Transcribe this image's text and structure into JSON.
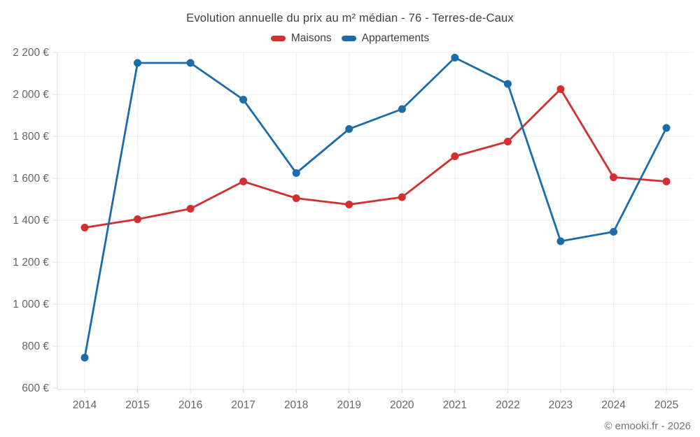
{
  "chart_data": {
    "type": "line",
    "title": "Evolution annuelle du prix au m² médian - 76 - Terres-de-Caux",
    "categories": [
      "2014",
      "2015",
      "2016",
      "2017",
      "2018",
      "2019",
      "2020",
      "2021",
      "2022",
      "2023",
      "2024",
      "2025"
    ],
    "series": [
      {
        "name": "Maisons",
        "color": "#d32f2f",
        "values": [
          1365,
          1405,
          1455,
          1585,
          1505,
          1475,
          1510,
          1705,
          1775,
          2025,
          1605,
          1585
        ]
      },
      {
        "name": "Appartements",
        "color": "#1b6ca8",
        "values": [
          745,
          2150,
          2150,
          1975,
          1625,
          1835,
          1930,
          2175,
          2050,
          1300,
          1345,
          1840
        ]
      }
    ],
    "xlabel": "",
    "ylabel": "",
    "ylim": [
      600,
      2200
    ],
    "ytick_step": 200,
    "ytick_suffix": " €",
    "grid": true,
    "legend_position": "top",
    "attribution": "© emooki.fr - 2026",
    "colors": {
      "grid": "#ececec",
      "axis": "#d9d9d9",
      "tick": "#d9d9d9",
      "axis_label": "#666666",
      "title_text": "#3f3f3f"
    }
  }
}
